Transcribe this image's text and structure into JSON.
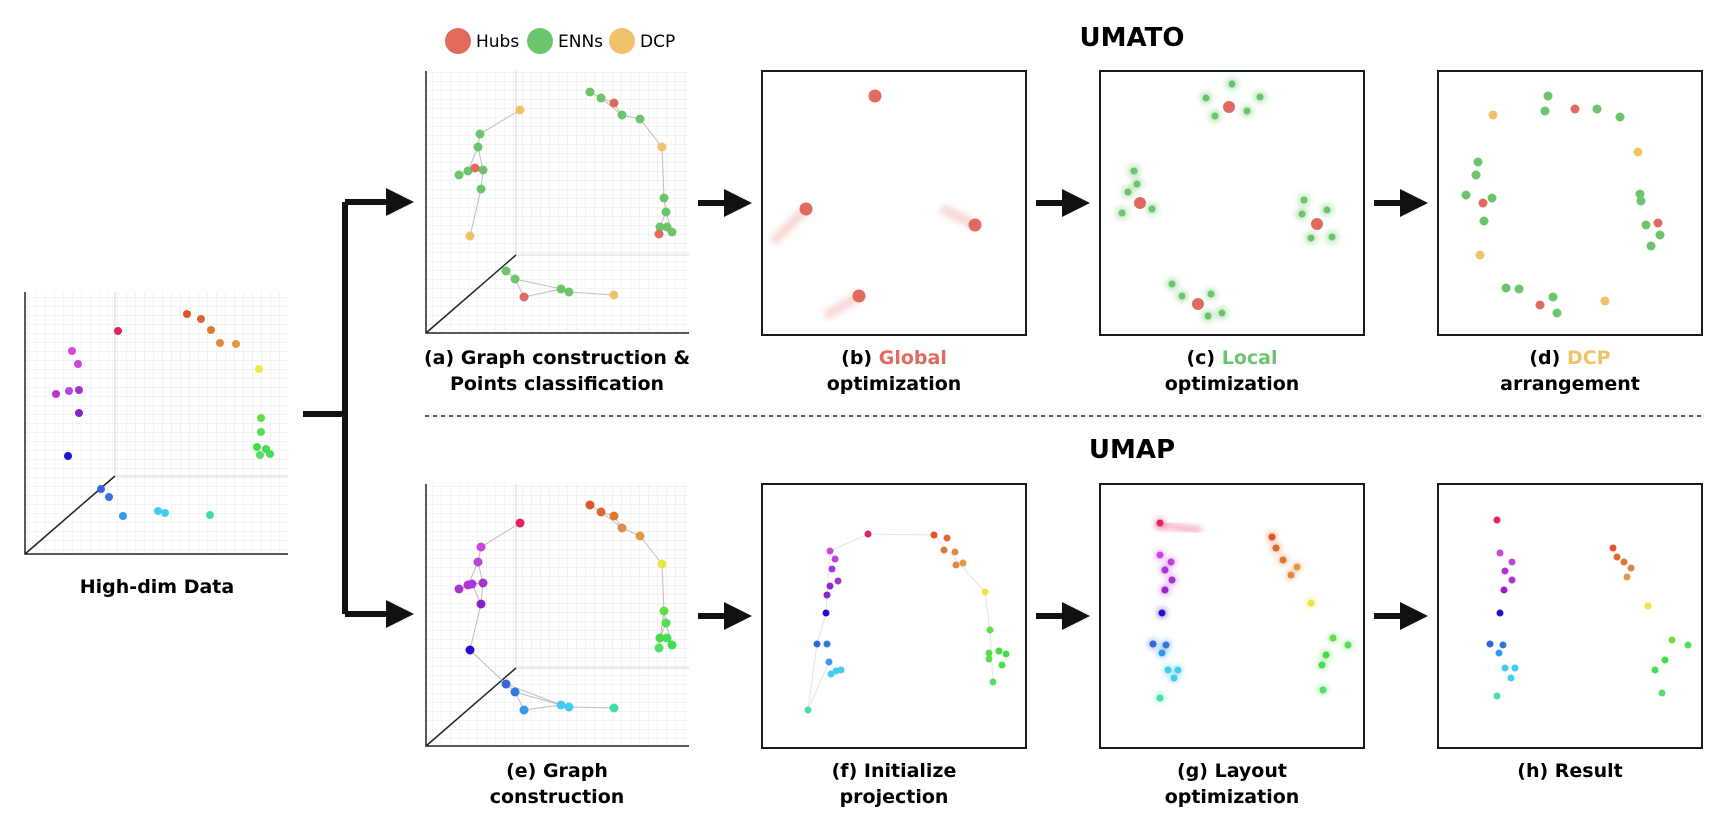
{
  "colors": {
    "hub": "#e06a5e",
    "enn": "#6cc56c",
    "dcp": "#f0c26a",
    "frame": "#1a1a1a",
    "grid": "#e6e6e6",
    "edge": "#bcbcbc"
  },
  "legend": {
    "items": [
      {
        "label": "Hubs",
        "color": "#e06a5e"
      },
      {
        "label": "ENNs",
        "color": "#6cc56c"
      },
      {
        "label": "DCP",
        "color": "#f0c26a"
      }
    ]
  },
  "sections": {
    "umato_title": "UMATO",
    "umap_title": "UMAP"
  },
  "input": {
    "caption": "High-dim Data"
  },
  "captions": {
    "a": {
      "line1": "(a) Graph construction &",
      "line2": "Points classification"
    },
    "b": {
      "prefix": "(b) ",
      "highlight": "Global",
      "line2": "optimization"
    },
    "c": {
      "prefix": "(c) ",
      "highlight": "Local",
      "line2": "optimization"
    },
    "d": {
      "prefix": "(d) ",
      "highlight": "DCP",
      "line2": "arrangement"
    },
    "e": {
      "line1": "(e) Graph",
      "line2": "construction"
    },
    "f": {
      "line1": "(f) Initialize",
      "line2": "projection"
    },
    "g": {
      "line1": "(g) Layout",
      "line2": "optimization"
    },
    "h": {
      "line1": "(h) Result"
    }
  }
}
